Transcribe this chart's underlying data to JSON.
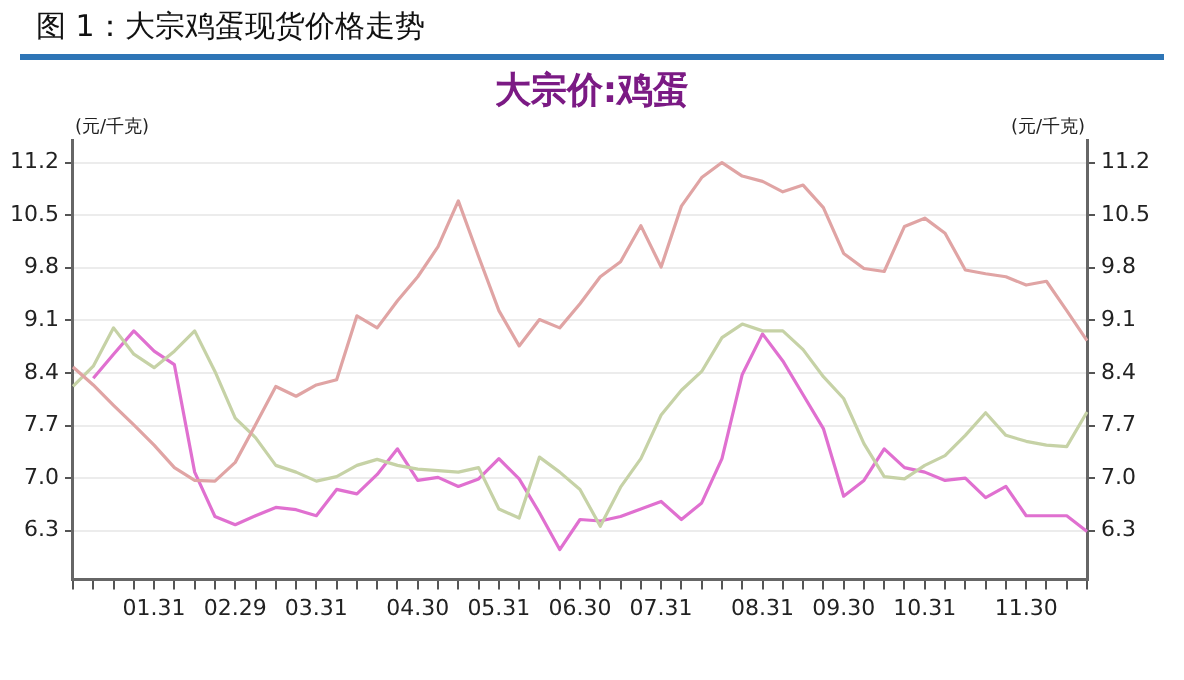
{
  "chart_data": {
    "type": "line",
    "title": "图 1：大宗鸡蛋现货价格走势",
    "subtitle": "大宗价:鸡蛋",
    "ylabel": "(元/千克)",
    "y2label": "(元/千克)",
    "categories": [
      null,
      null,
      null,
      null,
      "01.31",
      null,
      null,
      null,
      "02.29",
      null,
      null,
      null,
      "03.31",
      null,
      null,
      null,
      null,
      "04.30",
      null,
      null,
      null,
      "05.31",
      null,
      null,
      null,
      "06.30",
      null,
      null,
      null,
      "07.31",
      null,
      null,
      null,
      null,
      "08.31",
      null,
      null,
      null,
      "09.30",
      null,
      null,
      null,
      "10.31",
      null,
      null,
      null,
      null,
      "11.30",
      null,
      null,
      null
    ],
    "series": [
      {
        "color": "#e0a4a4",
        "values": [
          8.48,
          8.24,
          7.97,
          7.71,
          7.44,
          7.14,
          6.97,
          6.96,
          7.21,
          7.71,
          8.22,
          8.09,
          8.24,
          8.31,
          9.16,
          9.0,
          9.36,
          9.68,
          10.08,
          10.69,
          9.95,
          9.23,
          8.76,
          9.11,
          9.0,
          9.32,
          9.68,
          9.88,
          10.36,
          9.81,
          10.62,
          11.0,
          11.2,
          11.02,
          10.95,
          10.81,
          10.9,
          10.6,
          9.99,
          9.79,
          9.75,
          10.35,
          10.46,
          10.26,
          9.77,
          9.72,
          9.68,
          9.57,
          9.62,
          9.23,
          8.83
        ]
      },
      {
        "color": "#c6d2a6",
        "values": [
          8.22,
          8.49,
          9.0,
          8.65,
          8.47,
          8.69,
          8.96,
          8.42,
          7.8,
          7.54,
          7.17,
          7.08,
          6.96,
          7.02,
          7.17,
          7.25,
          7.17,
          7.12,
          7.1,
          7.08,
          7.14,
          6.59,
          6.47,
          7.28,
          7.08,
          6.85,
          6.36,
          6.88,
          7.26,
          7.84,
          8.17,
          8.42,
          8.87,
          9.05,
          8.96,
          8.96,
          8.71,
          8.35,
          8.06,
          7.46,
          7.02,
          6.99,
          7.17,
          7.3,
          7.57,
          7.87,
          7.57,
          7.49,
          7.44,
          7.42,
          7.88
        ]
      },
      {
        "color": "#e070d0",
        "values": [
          null,
          8.33,
          8.65,
          8.96,
          8.69,
          8.51,
          7.08,
          6.49,
          6.38,
          6.5,
          6.61,
          6.58,
          6.5,
          6.85,
          6.79,
          7.05,
          7.39,
          6.97,
          7.01,
          6.89,
          6.99,
          7.26,
          6.99,
          6.54,
          6.05,
          6.45,
          6.43,
          6.49,
          6.59,
          6.69,
          6.45,
          6.67,
          7.26,
          8.38,
          8.92,
          8.56,
          8.11,
          7.66,
          6.76,
          6.97,
          7.39,
          7.14,
          7.08,
          6.97,
          7.0,
          6.74,
          6.89,
          6.5,
          6.5,
          6.5,
          6.29
        ]
      }
    ],
    "ylim": [
      5.65,
      11.5
    ],
    "yticks": [
      6.3,
      {
        "value": 7,
        "label": "7.0"
      },
      7.7,
      8.4,
      9.1,
      9.8,
      10.5,
      11.2
    ],
    "y2lim": [
      5.65,
      11.5
    ],
    "y2ticks": [
      6.3,
      {
        "value": 7,
        "label": "7.0"
      },
      7.7,
      8.4,
      9.1,
      9.8,
      10.5,
      11.2
    ],
    "grid": "y",
    "legend": false,
    "marker": "none",
    "line_style": "solid"
  }
}
